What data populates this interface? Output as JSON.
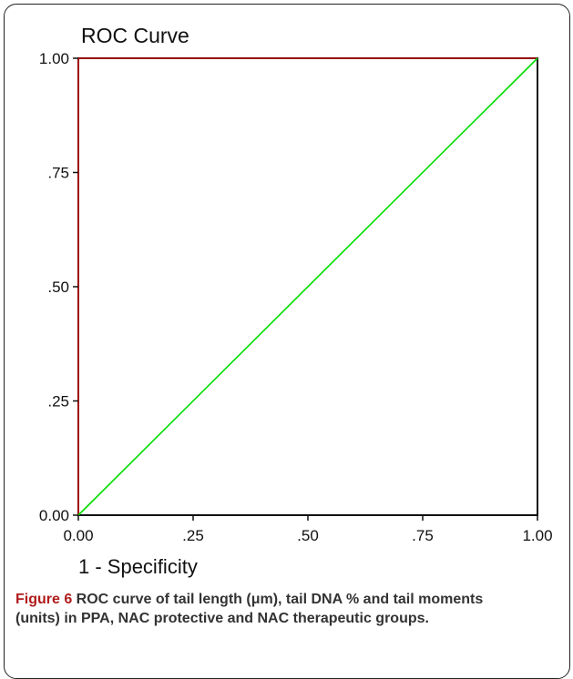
{
  "chart_data": {
    "type": "line",
    "title": "ROC Curve",
    "xlabel": "1 - Specificity",
    "ylabel": "",
    "xlim": [
      0,
      1
    ],
    "ylim": [
      0,
      1
    ],
    "x_ticks": [
      "0.00",
      ".25",
      ".50",
      ".75",
      "1.00"
    ],
    "y_ticks": [
      "0.00",
      ".25",
      ".50",
      ".75",
      "1.00"
    ],
    "series": [
      {
        "color": "#c00000",
        "points": [
          [
            0,
            0
          ],
          [
            0,
            1
          ],
          [
            1,
            1
          ]
        ]
      },
      {
        "color": "#00dd00",
        "points": [
          [
            0,
            0
          ],
          [
            1,
            1
          ]
        ]
      }
    ],
    "grid": false
  },
  "caption": {
    "label": "Figure 6",
    "text": " ROC curve of tail length (μm), tail DNA % and tail moments (units) in PPA, NAC protective and NAC therapeutic groups."
  }
}
